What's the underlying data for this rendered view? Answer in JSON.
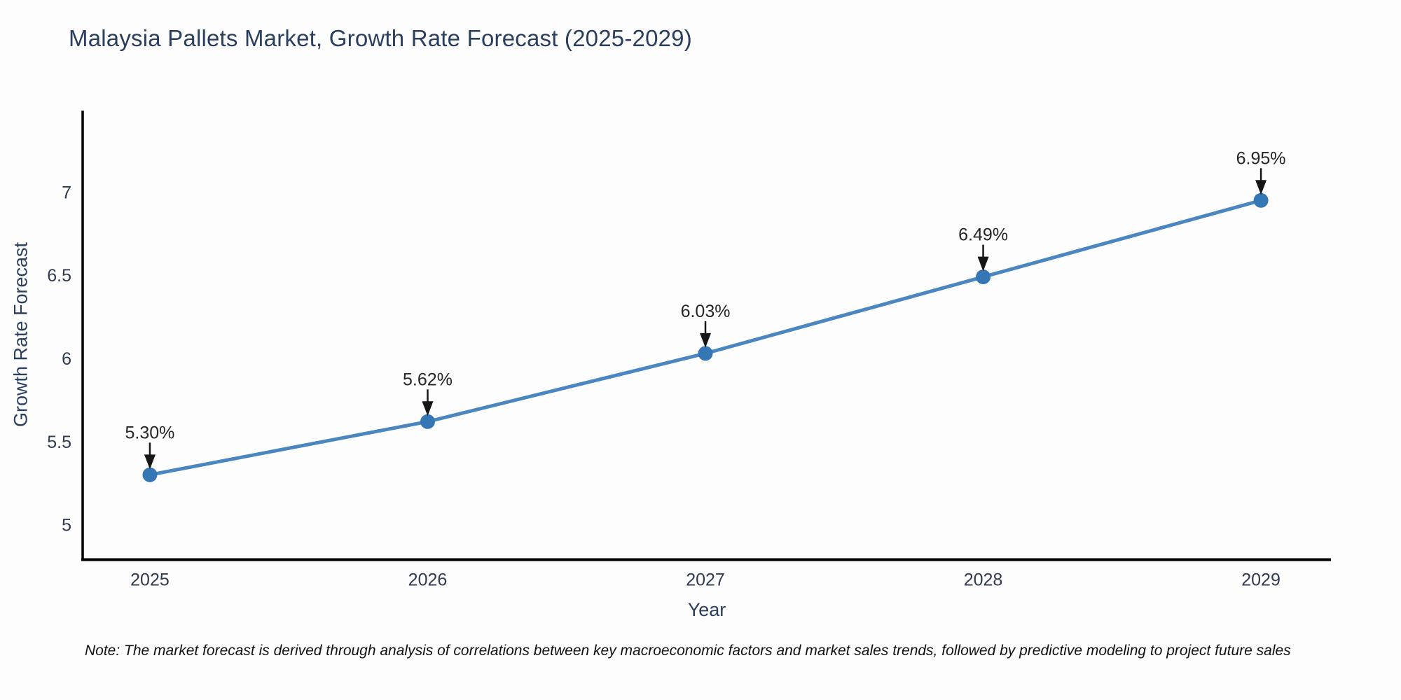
{
  "page": {
    "background": "#fdfdfd"
  },
  "chart": {
    "title": "Malaysia Pallets Market, Growth Rate Forecast (2025-2029)",
    "note": "Note: The market forecast is derived through analysis of correlations between key macroeconomic factors and market sales trends, followed by predictive modeling to project future sales"
  },
  "chart_data": {
    "type": "line",
    "title": "Malaysia Pallets Market, Growth Rate Forecast (2025-2029)",
    "xlabel": "Year",
    "ylabel": "Growth Rate Forecast",
    "x": [
      2025,
      2026,
      2027,
      2028,
      2029
    ],
    "series": [
      {
        "name": "Growth Rate Forecast",
        "values": [
          5.3,
          5.62,
          6.03,
          6.49,
          6.95
        ]
      }
    ],
    "point_labels": [
      "5.30%",
      "5.62%",
      "6.03%",
      "6.49%",
      "6.95%"
    ],
    "xtick_labels": [
      "2025",
      "2026",
      "2027",
      "2028",
      "2029"
    ],
    "ytick_labels": [
      "5",
      "5.5",
      "6",
      "6.5",
      "7"
    ],
    "ytick_values": [
      5,
      5.5,
      6,
      6.5,
      7
    ],
    "ylim": [
      4.79,
      7.49
    ],
    "xlim": [
      2024.758,
      2029.252
    ],
    "grid": false,
    "legend_position": "none",
    "annotation_style": "black-down-arrow-to-point",
    "colors": {
      "line": "#4a86bf",
      "marker": "#3576b5",
      "arrow": "#161616",
      "axis_line": "#000000",
      "title_text": "#2a3f5f",
      "axis_label_text": "#2a3f5f",
      "tick_text": "#2f3b52",
      "annotation_text": "#262626",
      "note_text": "#111111"
    }
  }
}
